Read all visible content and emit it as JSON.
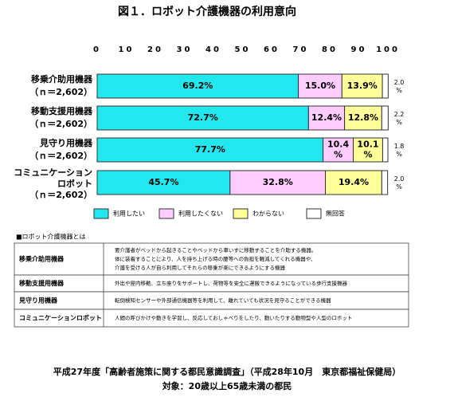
{
  "chart_data": {
    "type": "stacked_bar_horizontal",
    "title": "図１．ロボット介護機器の利用意向",
    "categories": [
      "移乗介助用機器",
      "移動支援用機器",
      "見守り用機器",
      "コミュニケーションロボット"
    ],
    "sample_sizes": [
      "（ｎ＝2,602）",
      "（ｎ＝2,602）",
      "（ｎ＝2,602）",
      "（ｎ＝2,602）"
    ],
    "xlim": [
      0,
      100
    ],
    "xticks": [
      0,
      10,
      20,
      30,
      40,
      50,
      60,
      70,
      80,
      90,
      100
    ],
    "series": [
      {
        "name": "利用したい",
        "color": "#22e8ee",
        "values": [
          69.2,
          72.7,
          77.7,
          45.7
        ],
        "value_labels": [
          "69.2%",
          "72.7%",
          "77.7%",
          "45.7%"
        ]
      },
      {
        "name": "利用したくない",
        "color": "#ffccff",
        "values": [
          15.0,
          12.4,
          10.4,
          32.8
        ],
        "value_labels": [
          "15.0%",
          "12.4%",
          "10.4%",
          "32.8%"
        ]
      },
      {
        "name": "わからない",
        "color": "#ffff99",
        "values": [
          13.9,
          12.8,
          10.1,
          19.4
        ],
        "value_labels": [
          "13.9%",
          "12.8%",
          "10.1%",
          "19.4%"
        ]
      },
      {
        "name": "無回答",
        "color": "#ffffff",
        "values": [
          2.0,
          2.2,
          1.8,
          2.0
        ],
        "value_labels": [
          "2.0%",
          "2.2%",
          "1.8%",
          "2.0%"
        ]
      }
    ]
  },
  "definitions": {
    "title": "■ロボット介護機器とは",
    "rows": [
      {
        "term": "移乗介助用機器",
        "lines": [
          "要介護者がベッドから起きることやベッドから車いすに移動することを介助する機器。",
          "体に装着することにより、人を持ち上げる時の腰等への負担を軽減してくれる機器や、",
          "介護を受ける人が自ら利用してそれらの移乗が楽にできるようにする機器"
        ]
      },
      {
        "term": "移動支援用機器",
        "lines": [
          "外出や屋内移動、立ち座りをサポートし、荷物等を安全に運搬できるようになっている歩行支援機器"
        ]
      },
      {
        "term": "見守り用機器",
        "lines": [
          "転倒検知センサーや外部通信機器等を利用して、離れていても状況を見守ることができる機器"
        ]
      },
      {
        "term": "コミュニケーションロボット",
        "lines": [
          "人間の呼びかけや動きを学習し、反応しておしゃべりをしたり、動いたりする動物型や人型のロボット"
        ]
      }
    ]
  },
  "source": "平成27年度「高齢者施策に関する都民意識調査」（平成28年10月　東京都福祉保健局）",
  "target": "対象：20歳以上65歳未満の都民"
}
